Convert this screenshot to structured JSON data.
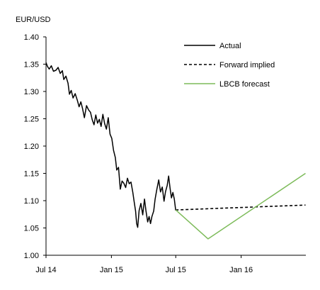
{
  "chart_data": {
    "type": "line",
    "ylabel": "EUR/USD",
    "ylim": [
      1.0,
      1.4
    ],
    "y_ticks": [
      "1.00",
      "1.05",
      "1.10",
      "1.15",
      "1.20",
      "1.25",
      "1.30",
      "1.35",
      "1.40"
    ],
    "x_ticks": [
      {
        "label": "Jul 14",
        "date": "2014-07-01"
      },
      {
        "label": "Jan 15",
        "date": "2015-01-01"
      },
      {
        "label": "Jul 15",
        "date": "2015-07-01"
      },
      {
        "label": "Jan 16",
        "date": "2016-01-01"
      }
    ],
    "xlim": [
      "2014-07-01",
      "2016-06-30"
    ],
    "grid": false,
    "legend_position": "top-right",
    "series": [
      {
        "name": "Actual",
        "color": "#000000",
        "style": "solid",
        "points": [
          [
            "2014-07-01",
            1.353
          ],
          [
            "2014-07-05",
            1.346
          ],
          [
            "2014-07-10",
            1.341
          ],
          [
            "2014-07-16",
            1.347
          ],
          [
            "2014-07-22",
            1.337
          ],
          [
            "2014-07-29",
            1.339
          ],
          [
            "2014-08-04",
            1.344
          ],
          [
            "2014-08-10",
            1.333
          ],
          [
            "2014-08-16",
            1.338
          ],
          [
            "2014-08-20",
            1.322
          ],
          [
            "2014-08-26",
            1.328
          ],
          [
            "2014-09-01",
            1.315
          ],
          [
            "2014-09-05",
            1.295
          ],
          [
            "2014-09-10",
            1.302
          ],
          [
            "2014-09-15",
            1.288
          ],
          [
            "2014-09-21",
            1.296
          ],
          [
            "2014-09-27",
            1.284
          ],
          [
            "2014-10-02",
            1.272
          ],
          [
            "2014-10-07",
            1.281
          ],
          [
            "2014-10-12",
            1.268
          ],
          [
            "2014-10-17",
            1.252
          ],
          [
            "2014-10-23",
            1.274
          ],
          [
            "2014-10-29",
            1.266
          ],
          [
            "2014-11-03",
            1.262
          ],
          [
            "2014-11-08",
            1.248
          ],
          [
            "2014-11-13",
            1.239
          ],
          [
            "2014-11-18",
            1.257
          ],
          [
            "2014-11-23",
            1.242
          ],
          [
            "2014-11-28",
            1.249
          ],
          [
            "2014-12-03",
            1.236
          ],
          [
            "2014-12-08",
            1.258
          ],
          [
            "2014-12-13",
            1.241
          ],
          [
            "2014-12-18",
            1.231
          ],
          [
            "2014-12-23",
            1.252
          ],
          [
            "2014-12-28",
            1.222
          ],
          [
            "2015-01-02",
            1.214
          ],
          [
            "2015-01-07",
            1.192
          ],
          [
            "2015-01-12",
            1.179
          ],
          [
            "2015-01-16",
            1.156
          ],
          [
            "2015-01-21",
            1.161
          ],
          [
            "2015-01-26",
            1.121
          ],
          [
            "2015-01-31",
            1.136
          ],
          [
            "2015-02-05",
            1.132
          ],
          [
            "2015-02-10",
            1.124
          ],
          [
            "2015-02-15",
            1.141
          ],
          [
            "2015-02-20",
            1.131
          ],
          [
            "2015-02-25",
            1.134
          ],
          [
            "2015-03-02",
            1.116
          ],
          [
            "2015-03-06",
            1.098
          ],
          [
            "2015-03-10",
            1.081
          ],
          [
            "2015-03-13",
            1.058
          ],
          [
            "2015-03-16",
            1.051
          ],
          [
            "2015-03-20",
            1.082
          ],
          [
            "2015-03-25",
            1.095
          ],
          [
            "2015-03-30",
            1.074
          ],
          [
            "2015-04-04",
            1.103
          ],
          [
            "2015-04-08",
            1.082
          ],
          [
            "2015-04-13",
            1.061
          ],
          [
            "2015-04-17",
            1.071
          ],
          [
            "2015-04-21",
            1.058
          ],
          [
            "2015-04-25",
            1.071
          ],
          [
            "2015-04-30",
            1.081
          ],
          [
            "2015-05-04",
            1.103
          ],
          [
            "2015-05-09",
            1.121
          ],
          [
            "2015-05-14",
            1.138
          ],
          [
            "2015-05-19",
            1.116
          ],
          [
            "2015-05-24",
            1.125
          ],
          [
            "2015-05-29",
            1.099
          ],
          [
            "2015-06-02",
            1.116
          ],
          [
            "2015-06-07",
            1.128
          ],
          [
            "2015-06-11",
            1.145
          ],
          [
            "2015-06-15",
            1.123
          ],
          [
            "2015-06-19",
            1.105
          ],
          [
            "2015-06-23",
            1.115
          ],
          [
            "2015-06-27",
            1.103
          ],
          [
            "2015-07-01",
            1.082
          ]
        ]
      },
      {
        "name": "Forward implied",
        "color": "#000000",
        "style": "dashed",
        "points": [
          [
            "2015-07-01",
            1.083
          ],
          [
            "2016-06-30",
            1.092
          ]
        ]
      },
      {
        "name": "LBCB forecast",
        "color": "#7dbb5a",
        "style": "solid",
        "points": [
          [
            "2015-07-01",
            1.083
          ],
          [
            "2015-09-30",
            1.03
          ],
          [
            "2016-06-30",
            1.15
          ]
        ]
      }
    ]
  }
}
